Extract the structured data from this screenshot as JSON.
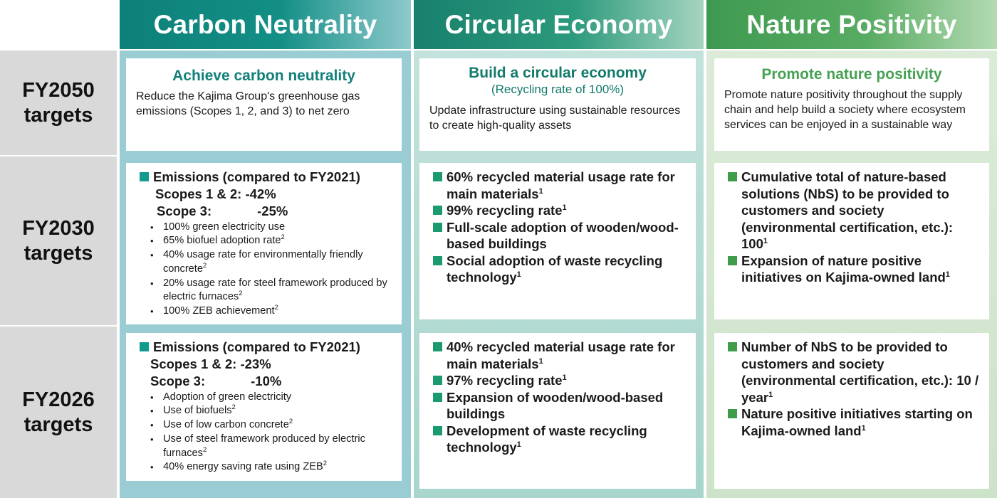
{
  "colors": {
    "carbon": "#0d8079",
    "circular": "#18806d",
    "nature": "#3e9a50",
    "row_label_bg": "#d9d9d9"
  },
  "headers": {
    "carbon": "Carbon Neutrality",
    "circular": "Circular Economy",
    "nature": "Nature Positivity"
  },
  "rows": {
    "fy2050": [
      "FY2050",
      "targets"
    ],
    "fy2030": [
      "FY2030",
      "targets"
    ],
    "fy2026": [
      "FY2026",
      "targets"
    ]
  },
  "fy2050": {
    "carbon": {
      "title": "Achieve carbon neutrality",
      "desc": "Reduce the Kajima Group's greenhouse gas emissions (Scopes 1, 2, and 3) to net zero"
    },
    "circular": {
      "title": "Build a circular economy",
      "subtitle": "(Recycling rate of 100%)",
      "desc": "Update infrastructure using sustainable resources to create high-quality assets"
    },
    "nature": {
      "title": "Promote nature positivity",
      "desc": "Promote nature positivity throughout the supply chain and help build a society where ecosystem services can be enjoyed in a sustainable way"
    }
  },
  "fy2030": {
    "carbon": {
      "heading": "Emissions (compared to FY2021)",
      "scope12_label": "Scopes 1 & 2:",
      "scope12_value": "-42%",
      "scope3_label": "Scope 3:",
      "scope3_value": "-25%",
      "bullets": [
        {
          "text": "100% green electricity use",
          "sup": ""
        },
        {
          "text": "65% biofuel adoption rate",
          "sup": "2"
        },
        {
          "text": "40% usage rate for environmentally friendly concrete",
          "sup": "2"
        },
        {
          "text": "20% usage rate for steel framework produced by electric furnaces",
          "sup": "2"
        },
        {
          "text": "100% ZEB achievement",
          "sup": "2"
        }
      ]
    },
    "circular": [
      {
        "text": "60% recycled material usage rate for main materials",
        "sup": "1"
      },
      {
        "text": "99% recycling rate",
        "sup": "1"
      },
      {
        "text": "Full-scale adoption of wooden/wood-based buildings",
        "sup": ""
      },
      {
        "text": "Social adoption of waste recycling technology",
        "sup": "1"
      }
    ],
    "nature": [
      {
        "text": "Cumulative total of nature-based solutions (NbS) to be provided to customers and society (environmental certification, etc.): 100",
        "sup": "1"
      },
      {
        "text": "Expansion of nature positive initiatives on Kajima-owned land",
        "sup": "1"
      }
    ]
  },
  "fy2026": {
    "carbon": {
      "heading": "Emissions (compared to FY2021)",
      "scope12_label": "Scopes 1 & 2:",
      "scope12_value": "-23%",
      "scope3_label": "Scope 3:",
      "scope3_value": "-10%",
      "bullets": [
        {
          "text": "Adoption of green electricity",
          "sup": ""
        },
        {
          "text": "Use of biofuels",
          "sup": "2"
        },
        {
          "text": "Use of low carbon concrete",
          "sup": "2"
        },
        {
          "text": "Use of steel framework produced by electric furnaces",
          "sup": "2"
        },
        {
          "text": "40% energy saving rate using ZEB",
          "sup": "2"
        }
      ]
    },
    "circular": [
      {
        "text": "40% recycled material usage rate for main materials",
        "sup": "1"
      },
      {
        "text": "97% recycling rate",
        "sup": "1"
      },
      {
        "text": "Expansion of wooden/wood-based buildings",
        "sup": ""
      },
      {
        "text": "Development of waste recycling technology",
        "sup": "1"
      }
    ],
    "nature": [
      {
        "text": "Number of NbS to be provided to customers and society (environmental certification, etc.): 10 / year",
        "sup": "1"
      },
      {
        "text": "Nature positive initiatives starting on Kajima-owned land",
        "sup": "1"
      }
    ]
  }
}
